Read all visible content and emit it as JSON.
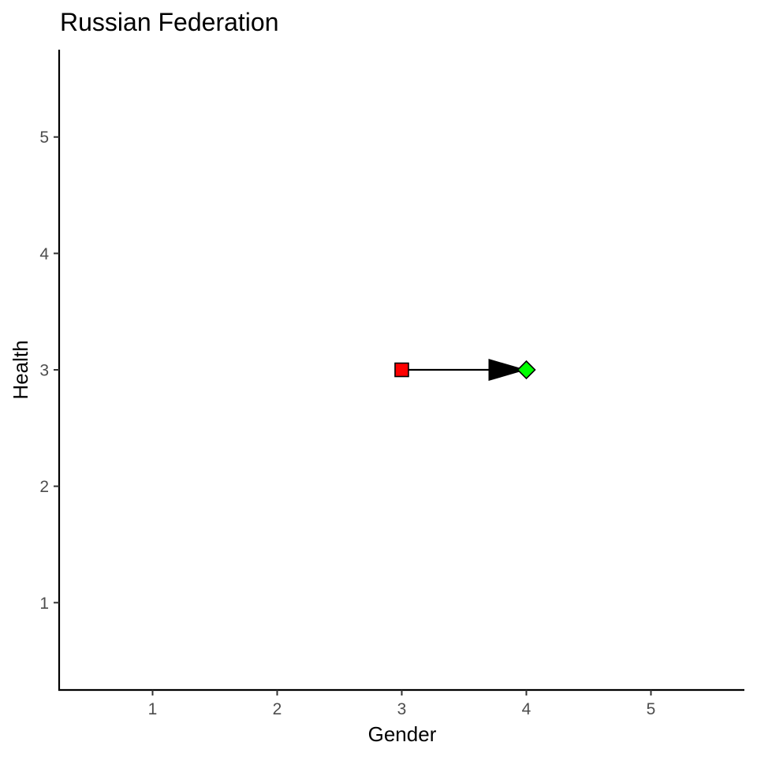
{
  "chart_data": {
    "type": "scatter",
    "title": "Russian Federation",
    "xlabel": "Gender",
    "ylabel": "Health",
    "xlim": [
      0.25,
      5.75
    ],
    "ylim": [
      0.25,
      5.75
    ],
    "xticks": [
      "1",
      "2",
      "3",
      "4",
      "5"
    ],
    "yticks": [
      "1",
      "2",
      "3",
      "4",
      "5"
    ],
    "grid": false,
    "legend": "none",
    "points": [
      {
        "x": 3,
        "y": 3,
        "shape": "square",
        "color": "#ff0000"
      },
      {
        "x": 4,
        "y": 3,
        "shape": "diamond",
        "color": "#00ff00"
      }
    ],
    "arrow": {
      "from": [
        3,
        3
      ],
      "to": [
        4,
        3
      ],
      "color": "#000000"
    }
  }
}
